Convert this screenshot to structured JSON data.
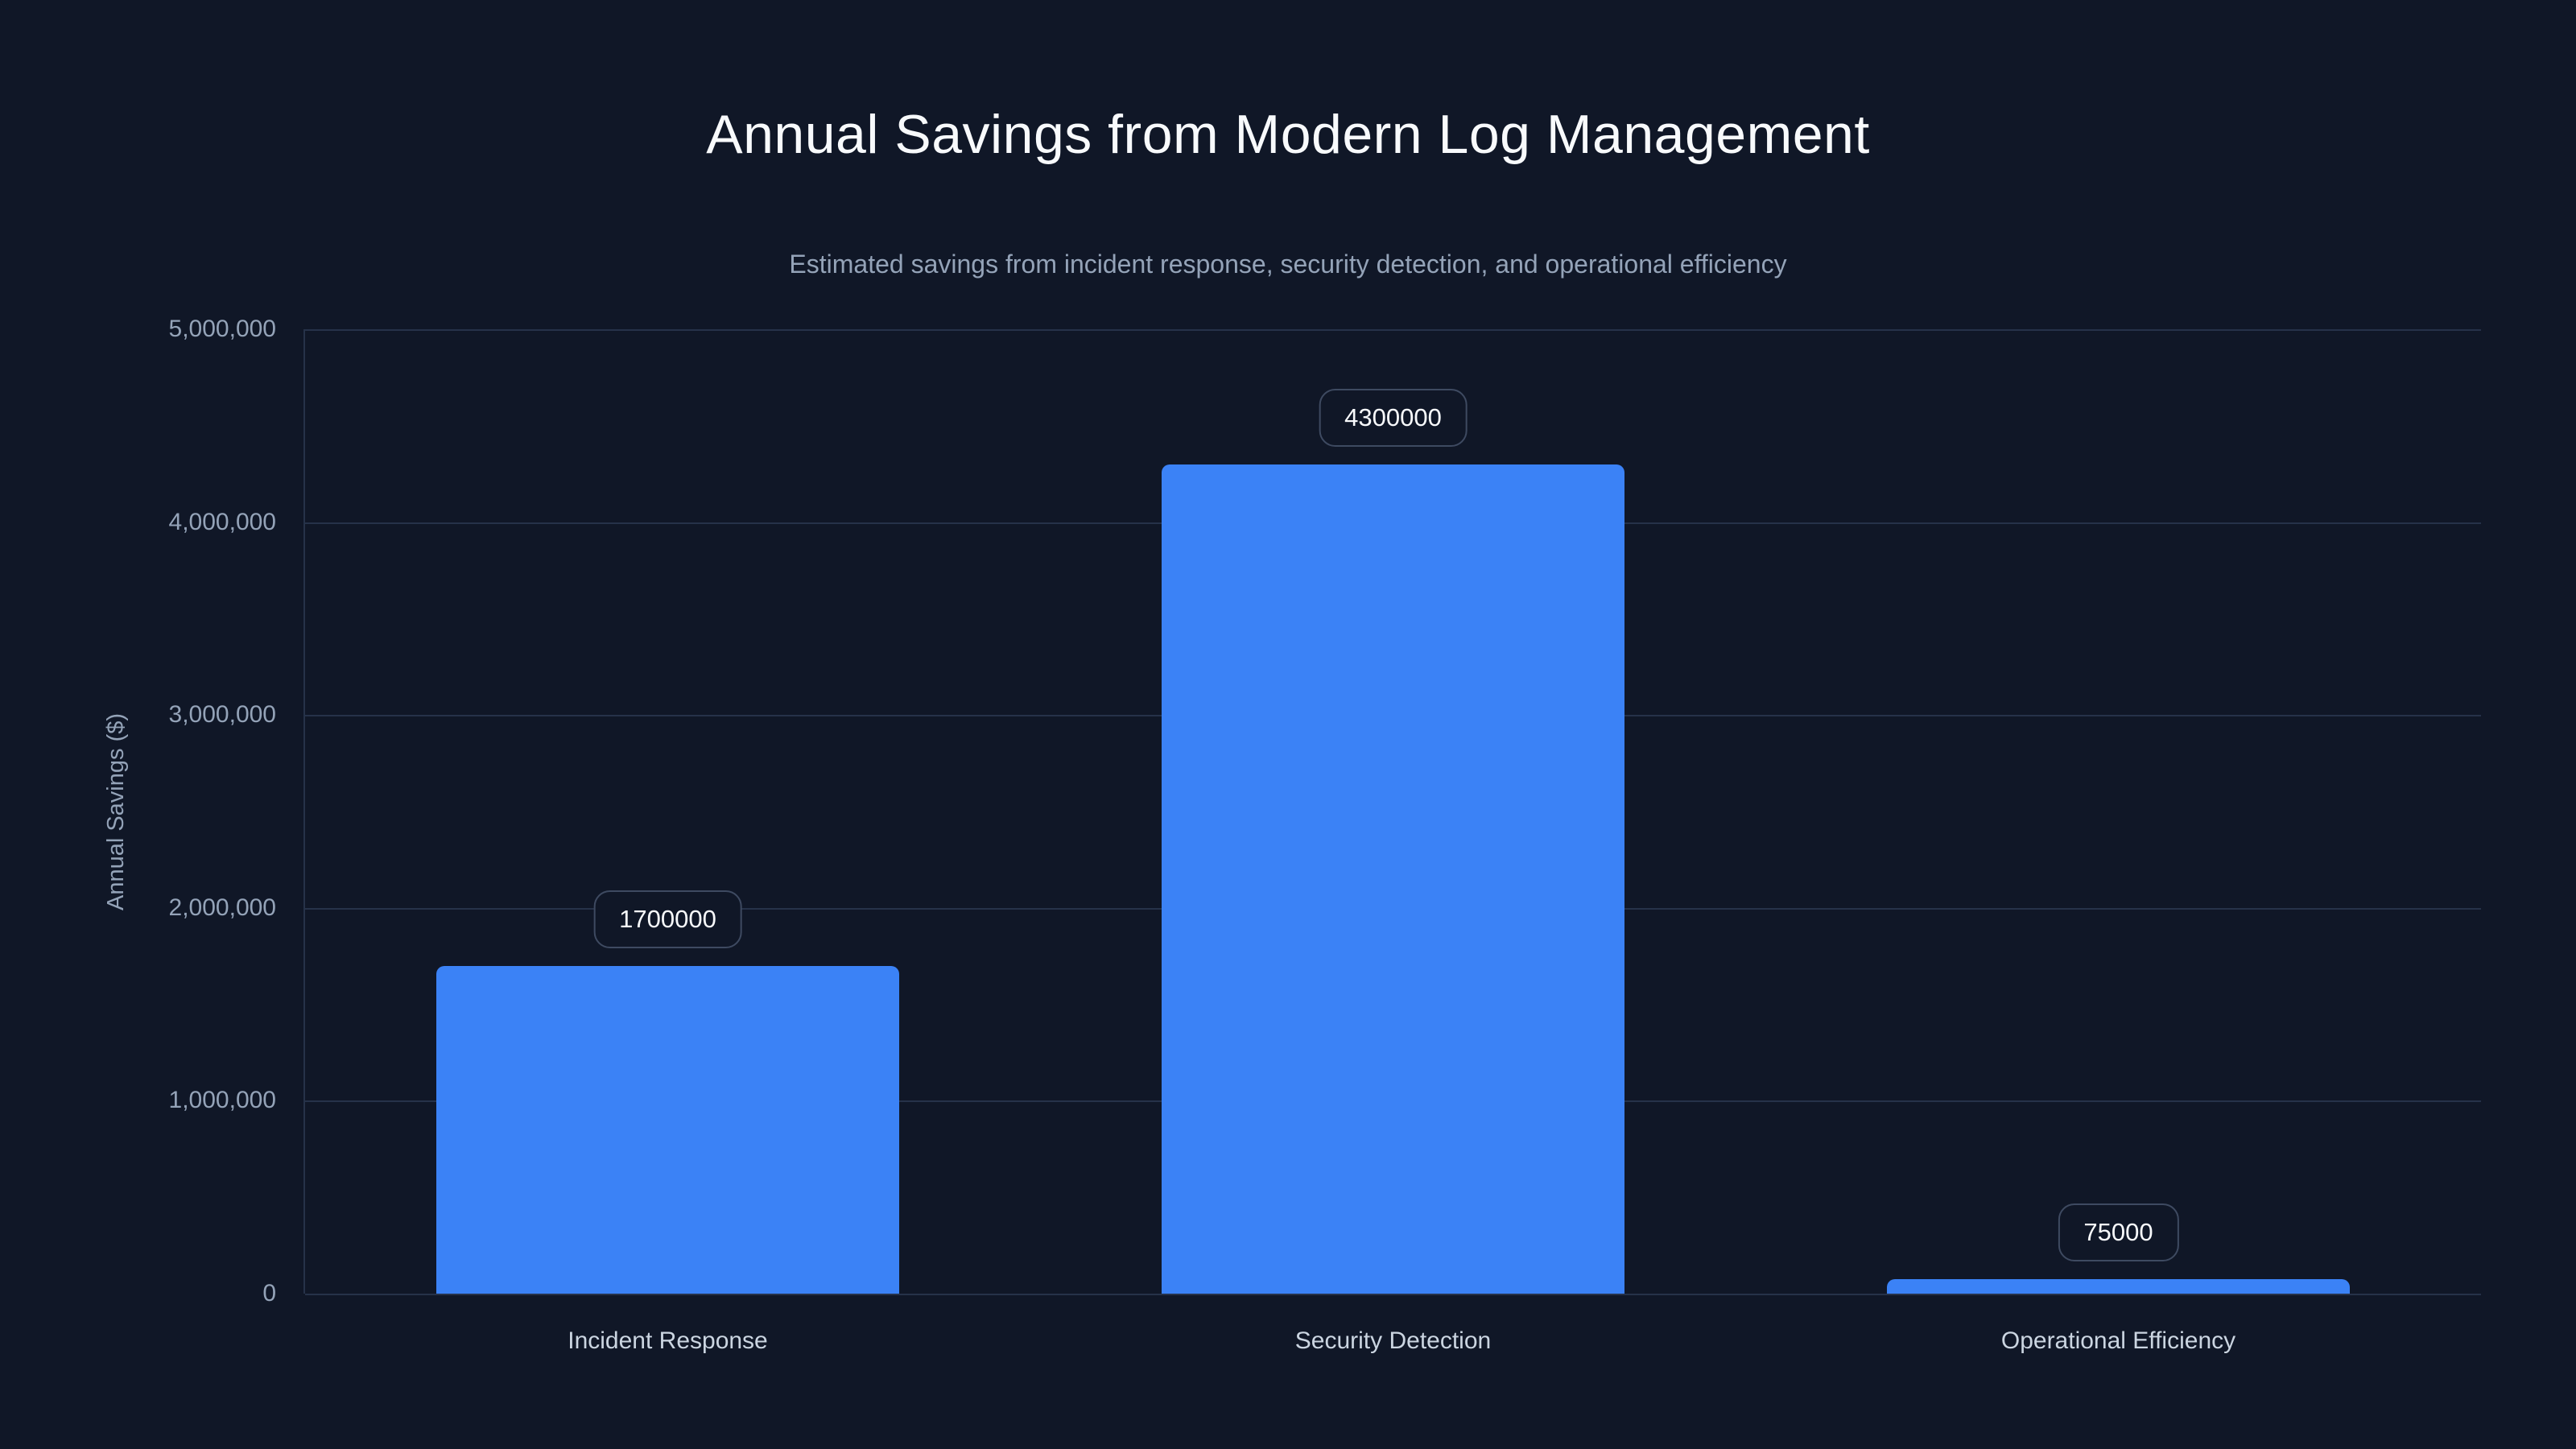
{
  "title": "Annual Savings from Modern Log Management",
  "subtitle": "Estimated savings from incident response, security detection, and operational efficiency",
  "colors": {
    "background": "#101727",
    "bar": "#3b82f6",
    "title": "#f8fafc",
    "subtitle": "#94a3b8",
    "axis_text": "#94a3b8",
    "category_text": "#cbd5e1",
    "gridline": "#263249",
    "pill_border": "#3e4a61",
    "pill_text": "#f8fafc"
  },
  "chart_data": {
    "type": "bar",
    "title": "Annual Savings from Modern Log Management",
    "subtitle": "Estimated savings from incident response, security detection, and operational efficiency",
    "categories": [
      "Incident Response",
      "Security Detection",
      "Operational Efficiency"
    ],
    "values": [
      1700000,
      4300000,
      75000
    ],
    "value_labels": [
      "1700000",
      "4300000",
      "75000"
    ],
    "xlabel": "",
    "ylabel": "Annual Savings ($)",
    "ylim": [
      0,
      5000000
    ],
    "yticks": [
      0,
      1000000,
      2000000,
      3000000,
      4000000,
      5000000
    ],
    "ytick_labels": [
      "0",
      "1,000,000",
      "2,000,000",
      "3,000,000",
      "4,000,000",
      "5,000,000"
    ],
    "grid": "horizontal",
    "legend": false,
    "bar_color": "#3b82f6"
  }
}
